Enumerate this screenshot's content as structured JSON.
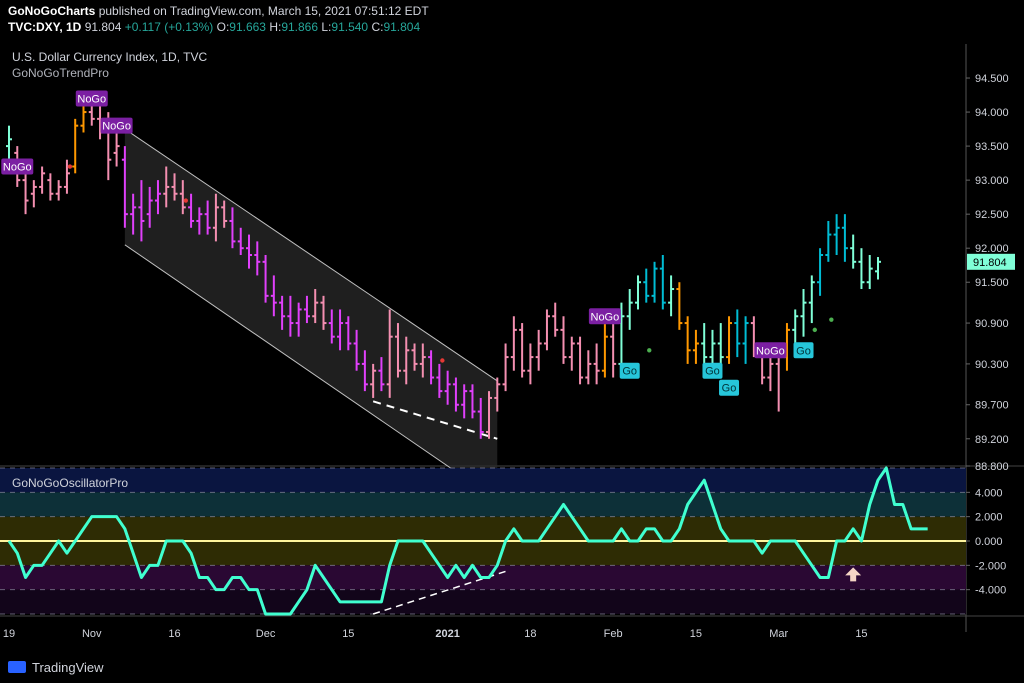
{
  "header": {
    "publisher": "GoNoGoCharts",
    "published_text": "published on TradingView.com, March 15, 2021 07:51:12 EDT",
    "symbol": "TVC:DXY, 1D",
    "last": "91.804",
    "change": "+0.117 (+0.13%)",
    "o_label": "O:",
    "o_value": "91.663",
    "h_label": "H:",
    "h_value": "91.866",
    "l_label": "L:",
    "l_value": "91.540",
    "c_label": "C:",
    "c_value": "91.804"
  },
  "footer": {
    "brand": "TradingView"
  },
  "colors": {
    "go_strong": "#2196f3",
    "go": "#00bcd4",
    "go_weak": "#80ffd8",
    "nogo_strong": "#9c27b0",
    "nogo": "#e040fb",
    "nogo_weak": "#f48fb1",
    "neutral": "#ff9800",
    "oscillator": "#40ffd0",
    "zero_line": "#fff59d",
    "badge_nogo": "#7b1fa2",
    "badge_go": "#26c6da"
  },
  "chart_data": [
    {
      "type": "candlestick",
      "title": "U.S. Dollar Currency Index, 1D, TVC",
      "subtitle": "GoNoGoTrendPro",
      "last_value_label": "91.804",
      "y_ticks": [
        "94.500",
        "94.000",
        "93.500",
        "93.000",
        "92.500",
        "92.000",
        "91.500",
        "90.900",
        "90.300",
        "89.700",
        "89.200",
        "88.800"
      ],
      "y_tick_values": [
        94.5,
        94.0,
        93.5,
        93.0,
        92.5,
        92.0,
        91.5,
        90.9,
        90.3,
        89.7,
        89.2,
        88.8
      ],
      "ylim": [
        88.8,
        95.0
      ],
      "x_ticks": [
        "19",
        "Nov",
        "16",
        "Dec",
        "15",
        "2021",
        "18",
        "Feb",
        "15",
        "Mar",
        "15"
      ],
      "x_tick_index": [
        0,
        10,
        20,
        31,
        41,
        53,
        63,
        73,
        83,
        93,
        103
      ],
      "bars": [
        {
          "o": 93.5,
          "h": 93.8,
          "l": 93.2,
          "c": 93.6,
          "s": "go_weak"
        },
        {
          "o": 93.4,
          "h": 93.5,
          "l": 92.9,
          "c": 93.0,
          "s": "nogo_weak"
        },
        {
          "o": 93.0,
          "h": 93.2,
          "l": 92.5,
          "c": 92.7,
          "s": "nogo_weak"
        },
        {
          "o": 92.8,
          "h": 93.0,
          "l": 92.6,
          "c": 92.9,
          "s": "nogo_weak"
        },
        {
          "o": 92.9,
          "h": 93.2,
          "l": 92.8,
          "c": 93.1,
          "s": "nogo_weak"
        },
        {
          "o": 93.0,
          "h": 93.1,
          "l": 92.7,
          "c": 92.8,
          "s": "nogo_weak"
        },
        {
          "o": 92.8,
          "h": 93.0,
          "l": 92.7,
          "c": 92.9,
          "s": "nogo_weak"
        },
        {
          "o": 92.9,
          "h": 93.3,
          "l": 92.8,
          "c": 93.1,
          "s": "nogo_weak"
        },
        {
          "o": 93.2,
          "h": 93.9,
          "l": 93.1,
          "c": 93.8,
          "s": "neutral"
        },
        {
          "o": 93.8,
          "h": 94.1,
          "l": 93.7,
          "c": 94.0,
          "s": "neutral"
        },
        {
          "o": 94.0,
          "h": 94.3,
          "l": 93.8,
          "c": 93.9,
          "s": "nogo_weak"
        },
        {
          "o": 93.9,
          "h": 94.2,
          "l": 93.6,
          "c": 93.7,
          "s": "nogo_weak"
        },
        {
          "o": 93.7,
          "h": 94.0,
          "l": 93.0,
          "c": 93.3,
          "s": "nogo_weak"
        },
        {
          "o": 93.4,
          "h": 93.8,
          "l": 93.2,
          "c": 93.5,
          "s": "nogo_weak"
        },
        {
          "o": 93.3,
          "h": 93.5,
          "l": 92.3,
          "c": 92.5,
          "s": "nogo"
        },
        {
          "o": 92.5,
          "h": 92.8,
          "l": 92.2,
          "c": 92.6,
          "s": "nogo"
        },
        {
          "o": 92.6,
          "h": 93.0,
          "l": 92.1,
          "c": 92.4,
          "s": "nogo"
        },
        {
          "o": 92.5,
          "h": 92.9,
          "l": 92.3,
          "c": 92.7,
          "s": "nogo"
        },
        {
          "o": 92.7,
          "h": 93.0,
          "l": 92.5,
          "c": 92.8,
          "s": "nogo"
        },
        {
          "o": 92.8,
          "h": 93.2,
          "l": 92.6,
          "c": 92.9,
          "s": "nogo_weak"
        },
        {
          "o": 92.9,
          "h": 93.1,
          "l": 92.7,
          "c": 92.8,
          "s": "nogo_weak"
        },
        {
          "o": 92.8,
          "h": 93.0,
          "l": 92.5,
          "c": 92.6,
          "s": "nogo_weak"
        },
        {
          "o": 92.6,
          "h": 92.8,
          "l": 92.3,
          "c": 92.4,
          "s": "nogo"
        },
        {
          "o": 92.4,
          "h": 92.6,
          "l": 92.2,
          "c": 92.5,
          "s": "nogo"
        },
        {
          "o": 92.5,
          "h": 92.7,
          "l": 92.2,
          "c": 92.3,
          "s": "nogo"
        },
        {
          "o": 92.3,
          "h": 92.8,
          "l": 92.1,
          "c": 92.6,
          "s": "nogo_weak"
        },
        {
          "o": 92.6,
          "h": 92.7,
          "l": 92.3,
          "c": 92.4,
          "s": "nogo_weak"
        },
        {
          "o": 92.4,
          "h": 92.6,
          "l": 92.0,
          "c": 92.1,
          "s": "nogo"
        },
        {
          "o": 92.1,
          "h": 92.3,
          "l": 91.9,
          "c": 92.0,
          "s": "nogo"
        },
        {
          "o": 92.0,
          "h": 92.2,
          "l": 91.7,
          "c": 91.9,
          "s": "nogo"
        },
        {
          "o": 91.9,
          "h": 92.1,
          "l": 91.6,
          "c": 91.8,
          "s": "nogo"
        },
        {
          "o": 91.8,
          "h": 91.9,
          "l": 91.2,
          "c": 91.3,
          "s": "nogo"
        },
        {
          "o": 91.3,
          "h": 91.6,
          "l": 91.0,
          "c": 91.2,
          "s": "nogo"
        },
        {
          "o": 91.2,
          "h": 91.3,
          "l": 90.8,
          "c": 91.0,
          "s": "nogo"
        },
        {
          "o": 91.0,
          "h": 91.3,
          "l": 90.7,
          "c": 90.9,
          "s": "nogo"
        },
        {
          "o": 90.9,
          "h": 91.2,
          "l": 90.7,
          "c": 91.1,
          "s": "nogo"
        },
        {
          "o": 91.1,
          "h": 91.3,
          "l": 90.9,
          "c": 91.0,
          "s": "nogo"
        },
        {
          "o": 91.0,
          "h": 91.4,
          "l": 90.9,
          "c": 91.2,
          "s": "nogo_weak"
        },
        {
          "o": 91.2,
          "h": 91.3,
          "l": 90.8,
          "c": 90.9,
          "s": "nogo_weak"
        },
        {
          "o": 90.9,
          "h": 91.1,
          "l": 90.6,
          "c": 90.7,
          "s": "nogo"
        },
        {
          "o": 90.7,
          "h": 91.1,
          "l": 90.5,
          "c": 90.9,
          "s": "nogo"
        },
        {
          "o": 90.9,
          "h": 91.0,
          "l": 90.5,
          "c": 90.6,
          "s": "nogo"
        },
        {
          "o": 90.6,
          "h": 90.8,
          "l": 90.2,
          "c": 90.3,
          "s": "nogo"
        },
        {
          "o": 90.3,
          "h": 90.5,
          "l": 89.9,
          "c": 90.0,
          "s": "nogo"
        },
        {
          "o": 90.0,
          "h": 90.3,
          "l": 89.8,
          "c": 90.2,
          "s": "nogo_weak"
        },
        {
          "o": 90.2,
          "h": 90.4,
          "l": 89.9,
          "c": 90.0,
          "s": "nogo"
        },
        {
          "o": 90.0,
          "h": 91.1,
          "l": 89.8,
          "c": 90.7,
          "s": "nogo_weak"
        },
        {
          "o": 90.7,
          "h": 90.9,
          "l": 90.1,
          "c": 90.2,
          "s": "nogo_weak"
        },
        {
          "o": 90.2,
          "h": 90.7,
          "l": 90.0,
          "c": 90.5,
          "s": "nogo_weak"
        },
        {
          "o": 90.5,
          "h": 90.6,
          "l": 90.2,
          "c": 90.3,
          "s": "nogo_weak"
        },
        {
          "o": 90.3,
          "h": 90.6,
          "l": 90.1,
          "c": 90.4,
          "s": "nogo_weak"
        },
        {
          "o": 90.4,
          "h": 90.5,
          "l": 90.0,
          "c": 90.1,
          "s": "nogo"
        },
        {
          "o": 90.1,
          "h": 90.3,
          "l": 89.8,
          "c": 89.9,
          "s": "nogo"
        },
        {
          "o": 89.9,
          "h": 90.2,
          "l": 89.7,
          "c": 90.0,
          "s": "nogo"
        },
        {
          "o": 90.0,
          "h": 90.1,
          "l": 89.6,
          "c": 89.7,
          "s": "nogo"
        },
        {
          "o": 89.7,
          "h": 90.0,
          "l": 89.5,
          "c": 89.9,
          "s": "nogo"
        },
        {
          "o": 89.9,
          "h": 90.0,
          "l": 89.5,
          "c": 89.6,
          "s": "nogo"
        },
        {
          "o": 89.6,
          "h": 89.8,
          "l": 89.2,
          "c": 89.3,
          "s": "nogo"
        },
        {
          "o": 89.3,
          "h": 89.9,
          "l": 89.2,
          "c": 89.8,
          "s": "nogo_weak"
        },
        {
          "o": 89.8,
          "h": 90.1,
          "l": 89.6,
          "c": 90.0,
          "s": "nogo_weak"
        },
        {
          "o": 90.0,
          "h": 90.6,
          "l": 89.9,
          "c": 90.4,
          "s": "nogo_weak"
        },
        {
          "o": 90.4,
          "h": 91.0,
          "l": 90.2,
          "c": 90.8,
          "s": "nogo_weak"
        },
        {
          "o": 90.8,
          "h": 90.9,
          "l": 90.1,
          "c": 90.2,
          "s": "nogo_weak"
        },
        {
          "o": 90.2,
          "h": 90.6,
          "l": 90.0,
          "c": 90.4,
          "s": "nogo_weak"
        },
        {
          "o": 90.4,
          "h": 90.8,
          "l": 90.2,
          "c": 90.6,
          "s": "nogo_weak"
        },
        {
          "o": 90.6,
          "h": 91.1,
          "l": 90.5,
          "c": 91.0,
          "s": "nogo_weak"
        },
        {
          "o": 91.0,
          "h": 91.2,
          "l": 90.7,
          "c": 90.8,
          "s": "nogo_weak"
        },
        {
          "o": 90.8,
          "h": 91.0,
          "l": 90.3,
          "c": 90.4,
          "s": "nogo_weak"
        },
        {
          "o": 90.4,
          "h": 90.7,
          "l": 90.2,
          "c": 90.6,
          "s": "nogo_weak"
        },
        {
          "o": 90.6,
          "h": 90.7,
          "l": 90.0,
          "c": 90.1,
          "s": "nogo_weak"
        },
        {
          "o": 90.1,
          "h": 90.5,
          "l": 90.0,
          "c": 90.3,
          "s": "nogo_weak"
        },
        {
          "o": 90.3,
          "h": 90.6,
          "l": 90.0,
          "c": 90.2,
          "s": "nogo_weak"
        },
        {
          "o": 90.2,
          "h": 90.9,
          "l": 90.1,
          "c": 90.7,
          "s": "neutral"
        },
        {
          "o": 90.7,
          "h": 91.0,
          "l": 90.1,
          "c": 90.3,
          "s": "nogo_weak"
        },
        {
          "o": 90.3,
          "h": 91.2,
          "l": 90.2,
          "c": 91.0,
          "s": "go_weak"
        },
        {
          "o": 91.0,
          "h": 91.4,
          "l": 90.8,
          "c": 91.2,
          "s": "go_weak"
        },
        {
          "o": 91.2,
          "h": 91.6,
          "l": 91.1,
          "c": 91.5,
          "s": "go_weak"
        },
        {
          "o": 91.5,
          "h": 91.7,
          "l": 91.2,
          "c": 91.3,
          "s": "go"
        },
        {
          "o": 91.3,
          "h": 91.8,
          "l": 91.2,
          "c": 91.7,
          "s": "go"
        },
        {
          "o": 91.7,
          "h": 91.9,
          "l": 91.1,
          "c": 91.2,
          "s": "go"
        },
        {
          "o": 91.2,
          "h": 91.6,
          "l": 91.0,
          "c": 91.4,
          "s": "go_weak"
        },
        {
          "o": 91.4,
          "h": 91.5,
          "l": 90.8,
          "c": 90.9,
          "s": "neutral"
        },
        {
          "o": 90.9,
          "h": 91.0,
          "l": 90.3,
          "c": 90.5,
          "s": "neutral"
        },
        {
          "o": 90.5,
          "h": 90.8,
          "l": 90.3,
          "c": 90.6,
          "s": "neutral"
        },
        {
          "o": 90.6,
          "h": 90.9,
          "l": 90.3,
          "c": 90.4,
          "s": "go_weak"
        },
        {
          "o": 90.4,
          "h": 90.8,
          "l": 90.2,
          "c": 90.6,
          "s": "go_weak"
        },
        {
          "o": 90.6,
          "h": 90.9,
          "l": 90.3,
          "c": 90.4,
          "s": "go_weak"
        },
        {
          "o": 90.4,
          "h": 91.0,
          "l": 90.3,
          "c": 90.9,
          "s": "neutral"
        },
        {
          "o": 90.9,
          "h": 91.1,
          "l": 90.4,
          "c": 90.6,
          "s": "go"
        },
        {
          "o": 90.6,
          "h": 91.0,
          "l": 90.3,
          "c": 90.9,
          "s": "go"
        },
        {
          "o": 90.9,
          "h": 91.0,
          "l": 90.4,
          "c": 90.5,
          "s": "nogo_weak"
        },
        {
          "o": 90.5,
          "h": 90.6,
          "l": 90.0,
          "c": 90.1,
          "s": "nogo_weak"
        },
        {
          "o": 90.1,
          "h": 90.4,
          "l": 89.9,
          "c": 90.3,
          "s": "nogo_weak"
        },
        {
          "o": 90.3,
          "h": 90.5,
          "l": 89.6,
          "c": 90.4,
          "s": "nogo_weak"
        },
        {
          "o": 90.4,
          "h": 90.9,
          "l": 90.2,
          "c": 90.8,
          "s": "neutral"
        },
        {
          "o": 90.8,
          "h": 91.1,
          "l": 90.6,
          "c": 91.0,
          "s": "go_weak"
        },
        {
          "o": 91.0,
          "h": 91.4,
          "l": 90.7,
          "c": 91.2,
          "s": "go_weak"
        },
        {
          "o": 91.2,
          "h": 91.6,
          "l": 90.9,
          "c": 91.5,
          "s": "go_weak"
        },
        {
          "o": 91.5,
          "h": 92.0,
          "l": 91.3,
          "c": 91.9,
          "s": "go"
        },
        {
          "o": 91.9,
          "h": 92.4,
          "l": 91.8,
          "c": 92.2,
          "s": "go"
        },
        {
          "o": 92.2,
          "h": 92.5,
          "l": 91.9,
          "c": 92.3,
          "s": "go"
        },
        {
          "o": 92.3,
          "h": 92.5,
          "l": 91.8,
          "c": 92.0,
          "s": "go"
        },
        {
          "o": 92.0,
          "h": 92.2,
          "l": 91.7,
          "c": 91.8,
          "s": "go_weak"
        },
        {
          "o": 91.8,
          "h": 92.0,
          "l": 91.4,
          "c": 91.5,
          "s": "go_weak"
        },
        {
          "o": 91.5,
          "h": 91.9,
          "l": 91.4,
          "c": 91.7,
          "s": "go_weak"
        },
        {
          "o": 91.66,
          "h": 91.87,
          "l": 91.54,
          "c": 91.8,
          "s": "go_weak"
        }
      ],
      "badges": [
        {
          "label": "NoGo",
          "i": 1,
          "y": 93.2,
          "kind": "nogo"
        },
        {
          "label": "NoGo",
          "i": 10,
          "y": 94.2,
          "kind": "nogo"
        },
        {
          "label": "NoGo",
          "i": 13,
          "y": 93.8,
          "kind": "nogo"
        },
        {
          "label": "NoGo",
          "i": 72,
          "y": 91.0,
          "kind": "nogo"
        },
        {
          "label": "Go",
          "i": 75,
          "y": 90.2,
          "kind": "go"
        },
        {
          "label": "Go",
          "i": 85,
          "y": 90.2,
          "kind": "go"
        },
        {
          "label": "Go",
          "i": 87,
          "y": 89.95,
          "kind": "go"
        },
        {
          "label": "NoGo",
          "i": 92,
          "y": 90.5,
          "kind": "nogo"
        },
        {
          "label": "Go",
          "i": 96,
          "y": 90.5,
          "kind": "go"
        }
      ],
      "dots": [
        {
          "i": 7,
          "y": 93.2,
          "kind": "nogo_dot"
        },
        {
          "i": 21,
          "y": 92.7,
          "kind": "nogo_dot"
        },
        {
          "i": 52,
          "y": 90.35,
          "kind": "nogo_dot"
        },
        {
          "i": 77,
          "y": 90.5,
          "kind": "go_dot"
        },
        {
          "i": 97,
          "y": 90.8,
          "kind": "go_dot"
        },
        {
          "i": 99,
          "y": 90.95,
          "kind": "go_dot"
        }
      ],
      "channel": {
        "i0": 14,
        "i1": 59,
        "upper0": 93.75,
        "upper1": 90.05,
        "lower0": 92.05,
        "lower1": 88.3
      },
      "dashed_support": {
        "i0": 44,
        "i1": 59,
        "y0": 89.75,
        "y1": 89.2
      }
    },
    {
      "type": "line",
      "title": "GoNoGoOscillatorPro",
      "y_ticks": [
        "4.000",
        "2.000",
        "0.000",
        "-2.000",
        "-4.000"
      ],
      "y_tick_values": [
        4,
        2,
        0,
        -2,
        -4
      ],
      "ylim": [
        -6,
        6
      ],
      "values": [
        0,
        -1,
        -3,
        -2,
        -2,
        -1,
        0,
        -1,
        0,
        1,
        2,
        2,
        2,
        2,
        1,
        -1,
        -3,
        -2,
        -2,
        0,
        0,
        0,
        -1,
        -3,
        -3,
        -4,
        -4,
        -3,
        -3,
        -4,
        -4,
        -6,
        -6,
        -6,
        -6,
        -5,
        -4,
        -2,
        -3,
        -4,
        -5,
        -5,
        -5,
        -5,
        -5,
        -5,
        -2,
        0,
        0,
        0,
        0,
        -1,
        -2,
        -3,
        -2,
        -3,
        -2,
        -3,
        -3,
        -2,
        0,
        1,
        0,
        0,
        0,
        1,
        2,
        3,
        2,
        1,
        0,
        0,
        0,
        0,
        1,
        0,
        0,
        1,
        1,
        0,
        0,
        1,
        3,
        4,
        5,
        3,
        1,
        0,
        0,
        0,
        0,
        -1,
        0,
        0,
        0,
        0,
        -1,
        -2,
        -3,
        -3,
        0,
        0,
        1,
        0,
        3,
        5,
        6,
        3,
        3,
        1,
        1,
        1
      ]
    }
  ]
}
